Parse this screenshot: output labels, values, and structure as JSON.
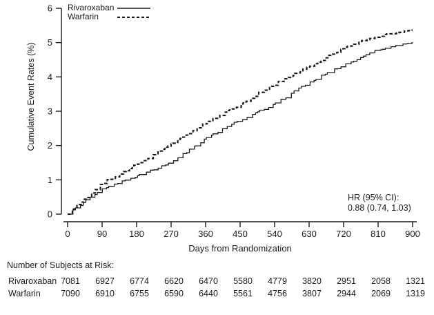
{
  "chart_data": {
    "type": "line",
    "subtype": "kaplan-meier-step",
    "title": "",
    "xlabel": "Days from Randomization",
    "ylabel": "Cumulative Event Rates (%)",
    "xlim": [
      0,
      900
    ],
    "ylim": [
      0,
      6
    ],
    "x_ticks": [
      0,
      90,
      180,
      270,
      360,
      450,
      540,
      630,
      720,
      810,
      900
    ],
    "y_ticks": [
      0,
      1,
      2,
      3,
      4,
      5,
      6
    ],
    "x": [
      0,
      90,
      180,
      270,
      360,
      450,
      540,
      630,
      720,
      810,
      900
    ],
    "series": [
      {
        "name": "Rivaroxaban",
        "line_style": "solid",
        "color": "#1a1a1a",
        "values": [
          0,
          0.75,
          1.1,
          1.5,
          2.2,
          2.75,
          3.2,
          3.85,
          4.35,
          4.8,
          5.0
        ]
      },
      {
        "name": "Warfarin",
        "line_style": "dashed",
        "color": "#1a1a1a",
        "values": [
          0,
          0.9,
          1.45,
          2.05,
          2.65,
          3.2,
          3.8,
          4.3,
          4.85,
          5.2,
          5.35
        ]
      }
    ],
    "legend_position": "top-left",
    "grid": false,
    "annotation": {
      "lines": [
        "HR (95% CI):",
        "0.88 (0.74, 1.03)"
      ]
    }
  },
  "risk_table": {
    "title": "Number of Subjects at Risk:",
    "days": [
      0,
      90,
      180,
      270,
      360,
      450,
      540,
      630,
      720,
      810,
      900
    ],
    "rows": [
      {
        "name": "Rivaroxaban",
        "counts": [
          7081,
          6927,
          6774,
          6620,
          6470,
          5580,
          4779,
          3820,
          2951,
          2058,
          1321
        ]
      },
      {
        "name": "Warfarin",
        "counts": [
          7090,
          6910,
          6755,
          6590,
          6440,
          5561,
          4756,
          3807,
          2944,
          2069,
          1319
        ]
      }
    ]
  }
}
